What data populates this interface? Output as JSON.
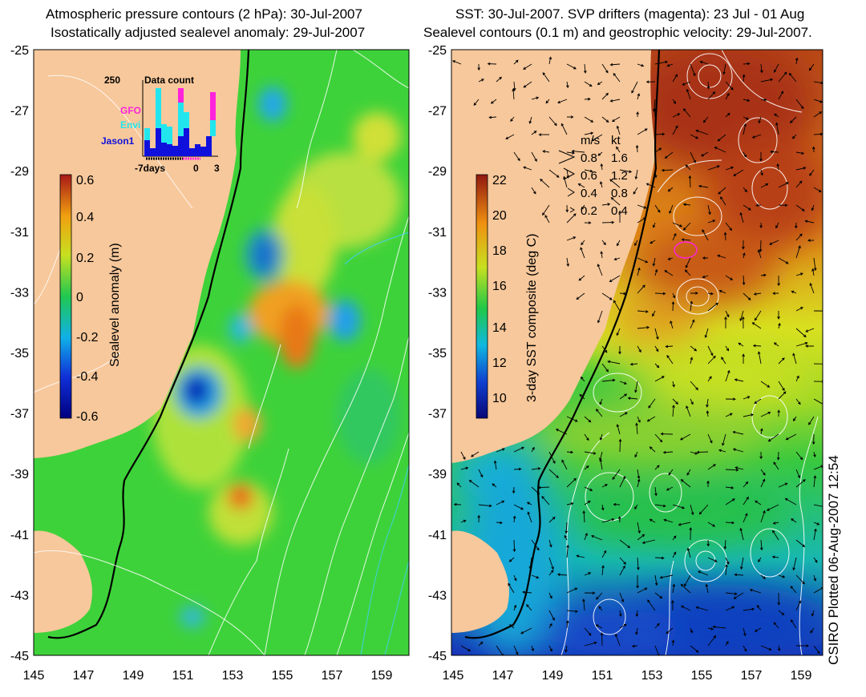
{
  "left_panel": {
    "title_line1": "Atmospheric pressure contours (2 hPa): 30-Jul-2007",
    "title_line2": "Isostatically adjusted sealevel anomaly: 29-Jul-2007",
    "colorbar": {
      "label": "Sealevel anomaly (m)",
      "ticks": [
        "0.6",
        "0.4",
        "0.2",
        "0",
        "-0.2",
        "-0.4",
        "-0.6"
      ]
    },
    "inset": {
      "title": "Data count",
      "ymax_label": "250",
      "x_ticks": [
        "-7days",
        "0",
        "3"
      ],
      "legend": [
        {
          "label": "GFO",
          "color": "#ff22dd"
        },
        {
          "label": "Envi",
          "color": "#22e6ee"
        },
        {
          "label": "Jason1",
          "color": "#1010dd"
        }
      ]
    }
  },
  "right_panel": {
    "title_line1": "SST: 30-Jul-2007. SVP drifters (magenta): 23 Jul - 01 Aug",
    "title_line2": "Sealevel contours (0.1 m) and geostrophic velocity: 29-Jul-2007.",
    "colorbar": {
      "label": "3-day SST composite (deg C)",
      "ticks": [
        "22",
        "20",
        "18",
        "16",
        "14",
        "12",
        "10"
      ]
    },
    "speed_legend": {
      "header_ms": "m/s",
      "header_kt": "kt",
      "rows": [
        {
          "ms": "0.8",
          "kt": "1.6"
        },
        {
          "ms": "0.6",
          "kt": "1.2"
        },
        {
          "ms": "0.4",
          "kt": "0.8"
        },
        {
          "ms": "0.2",
          "kt": "0.4"
        }
      ]
    }
  },
  "axes": {
    "lat_ticks": [
      "-25",
      "-27",
      "-29",
      "-31",
      "-33",
      "-35",
      "-37",
      "-39",
      "-41",
      "-43",
      "-45"
    ],
    "lon_ticks": [
      "145",
      "147",
      "149",
      "151",
      "153",
      "155",
      "157",
      "159"
    ]
  },
  "credit": "CSIRO Plotted 06-Aug-2007 12:54",
  "colors": {
    "land": "#f7c89b",
    "ssh_background": "#3ed23a",
    "sst_warm": "#c8641e"
  }
}
